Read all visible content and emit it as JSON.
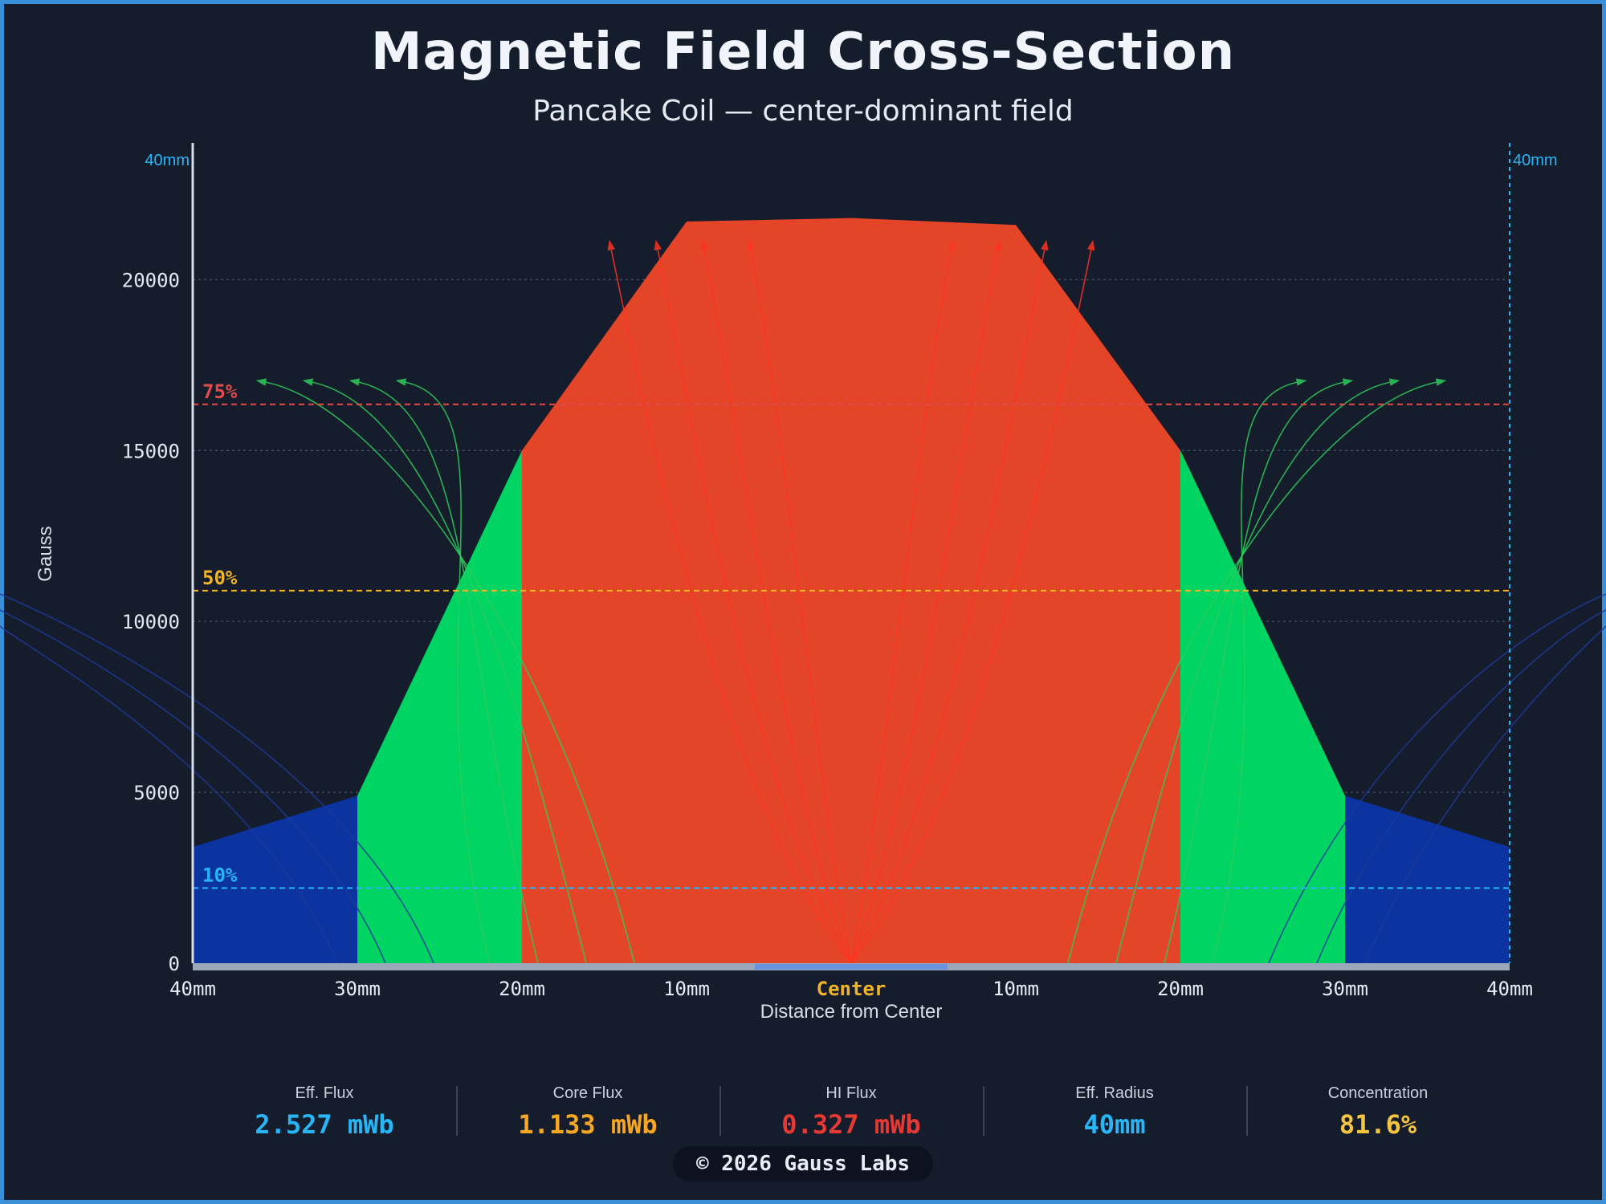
{
  "title": "Magnetic Field Cross-Section",
  "subtitle": "Pancake Coil — center-dominant field",
  "chart_data": {
    "type": "area",
    "title": "Magnetic Field Cross-Section",
    "subtitle": "Pancake Coil — center-dominant field",
    "ylabel": "Gauss",
    "xlabel": "Distance from Center",
    "ylim": [
      0,
      24000
    ],
    "xlim": [
      -40,
      40
    ],
    "yticks": [
      0,
      5000,
      10000,
      15000,
      20000
    ],
    "xticks": [
      {
        "x": -40,
        "label": "40mm"
      },
      {
        "x": -30,
        "label": "30mm"
      },
      {
        "x": -20,
        "label": "20mm"
      },
      {
        "x": -10,
        "label": "10mm"
      },
      {
        "x": 0,
        "label": "Center"
      },
      {
        "x": 10,
        "label": "10mm"
      },
      {
        "x": 20,
        "label": "20mm"
      },
      {
        "x": 30,
        "label": "30mm"
      },
      {
        "x": 40,
        "label": "40mm"
      }
    ],
    "radius_markers": [
      {
        "x": -40,
        "label": "40mm"
      },
      {
        "x": 40,
        "label": "40mm"
      }
    ],
    "profile": [
      {
        "x": -40,
        "y": 3400
      },
      {
        "x": -30,
        "y": 4900
      },
      {
        "x": -20,
        "y": 15000
      },
      {
        "x": -10,
        "y": 21700
      },
      {
        "x": 0,
        "y": 21800
      },
      {
        "x": 10,
        "y": 21600
      },
      {
        "x": 20,
        "y": 15000
      },
      {
        "x": 30,
        "y": 4900
      },
      {
        "x": 40,
        "y": 3400
      }
    ],
    "zones": [
      {
        "from": -40,
        "to": -30,
        "color": "#0c34a0"
      },
      {
        "from": -30,
        "to": -20,
        "color": "#00d563"
      },
      {
        "from": -20,
        "to": 20,
        "color": "#e44528"
      },
      {
        "from": 20,
        "to": 30,
        "color": "#00d563"
      },
      {
        "from": 30,
        "to": 40,
        "color": "#0c34a0"
      }
    ],
    "thresholds": [
      {
        "label": "75%",
        "y": 16350,
        "color": "#e04b4b"
      },
      {
        "label": "50%",
        "y": 10900,
        "color": "#f0b429"
      },
      {
        "label": "10%",
        "y": 2200,
        "color": "#29b6f6"
      }
    ],
    "grid": true
  },
  "stats": [
    {
      "label": "Eff. Flux",
      "value": "2.527 mWb",
      "color": "#29b6f6"
    },
    {
      "label": "Core Flux",
      "value": "1.133 mWb",
      "color": "#f5a623"
    },
    {
      "label": "HI Flux",
      "value": "0.327 mWb",
      "color": "#e53935"
    },
    {
      "label": "Eff. Radius",
      "value": "40mm",
      "color": "#29b6f6"
    },
    {
      "label": "Concentration",
      "value": "81.6%",
      "color": "#f5c542"
    }
  ],
  "footer": "© 2026 Gauss Labs",
  "colors": {
    "background": "#151c2c",
    "border": "#3a8fd9",
    "grid": "#4a5a70",
    "center_label": "#f0b429",
    "radius_marker": "#29b6f6",
    "blue_lines": "#1f3a9a",
    "green_lines": "#2ecc5a",
    "red_lines": "#ff3320"
  }
}
